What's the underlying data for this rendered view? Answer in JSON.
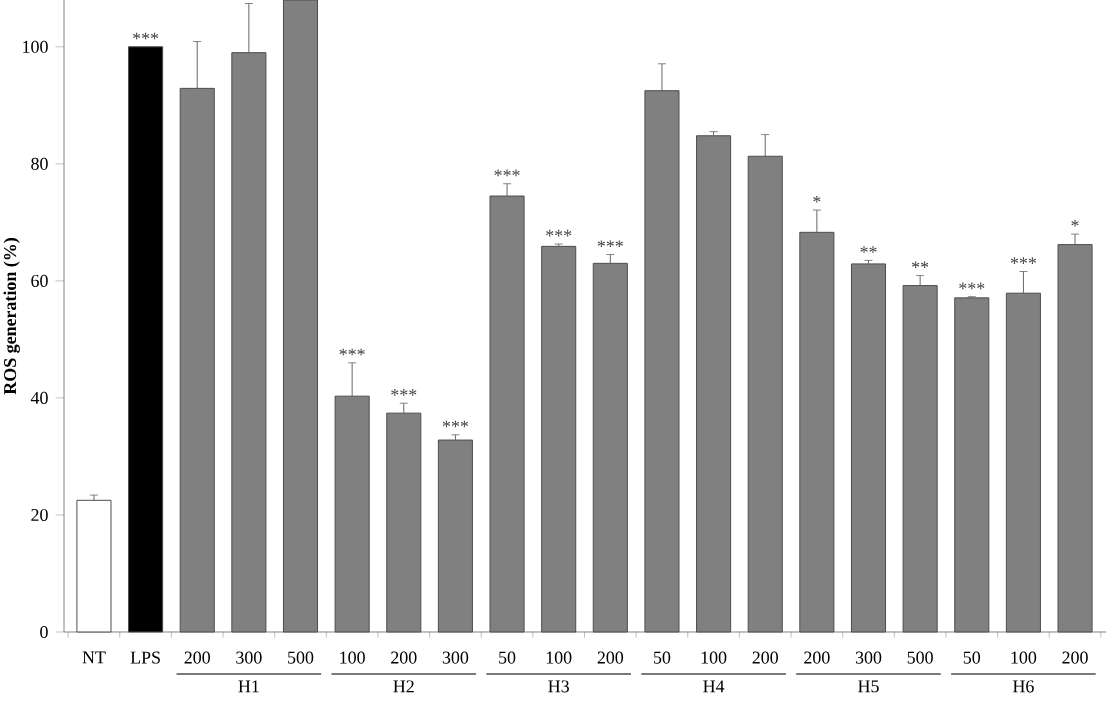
{
  "chart_data": {
    "type": "bar",
    "ylabel": "ROS generation (%)",
    "categories": [
      "NT",
      "LPS",
      "200",
      "300",
      "500",
      "100",
      "200",
      "300",
      "50",
      "100",
      "200",
      "50",
      "100",
      "200",
      "200",
      "300",
      "500",
      "50",
      "100",
      "200"
    ],
    "values": [
      22.5,
      100,
      92.9,
      99,
      108,
      40.3,
      37.4,
      32.8,
      74.5,
      65.9,
      63.0,
      92.5,
      84.8,
      81.3,
      68.3,
      62.9,
      59.2,
      57.1,
      57.9,
      66.2
    ],
    "errors": [
      0.9,
      null,
      8.0,
      8.4,
      null,
      5.7,
      1.7,
      0.9,
      2.1,
      0.4,
      1.5,
      4.6,
      0.7,
      3.7,
      3.8,
      0.6,
      1.7,
      0.2,
      3.7,
      1.8
    ],
    "value_labels": [
      null,
      "***",
      null,
      null,
      null,
      "***",
      "***",
      "***",
      "***",
      "***",
      "***",
      null,
      null,
      null,
      "*",
      "**",
      "**",
      "***",
      "***",
      "*"
    ],
    "colors": [
      "#ffffff",
      "#000000",
      "#808080",
      "#808080",
      "#808080",
      "#808080",
      "#808080",
      "#808080",
      "#808080",
      "#808080",
      "#808080",
      "#808080",
      "#808080",
      "#808080",
      "#808080",
      "#808080",
      "#808080",
      "#808080",
      "#808080",
      "#808080"
    ],
    "annotations": [
      "H1",
      "H2",
      "H3",
      "H4",
      "H5",
      "H6"
    ],
    "ylim": [
      0,
      108
    ],
    "yticks": [
      0,
      20,
      40,
      60,
      80,
      100
    ]
  }
}
